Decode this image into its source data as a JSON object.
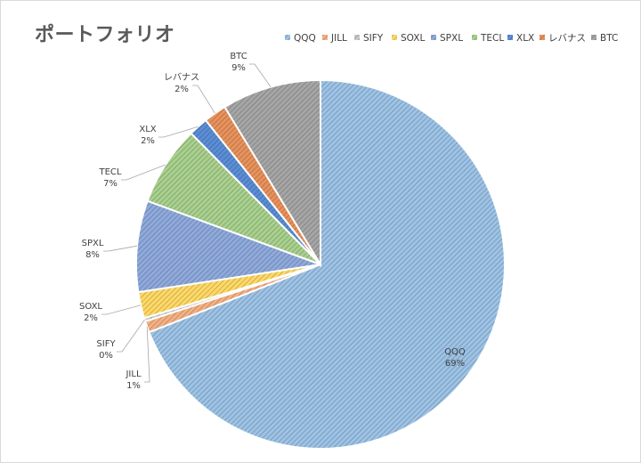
{
  "chart_data": {
    "type": "pie",
    "title": "ポートフォリオ",
    "legend_position": "top-right",
    "slices": [
      {
        "name": "QQQ",
        "value": 69,
        "label": "69%",
        "color": "#9dc3e6"
      },
      {
        "name": "JILL",
        "value": 1,
        "label": "1%",
        "color": "#f4b183"
      },
      {
        "name": "SIFY",
        "value": 0.3,
        "label": "0%",
        "color": "#c9c9c9"
      },
      {
        "name": "SOXL",
        "value": 2.3,
        "label": "2%",
        "color": "#ffd966"
      },
      {
        "name": "SPXL",
        "value": 8,
        "label": "8%",
        "color": "#8faadc"
      },
      {
        "name": "TECL",
        "value": 7,
        "label": "7%",
        "color": "#a9d18e"
      },
      {
        "name": "XLX",
        "value": 1.7,
        "label": "2%",
        "color": "#5b8ed6"
      },
      {
        "name": "レバナス",
        "value": 2,
        "label": "2%",
        "color": "#e8925c"
      },
      {
        "name": "BTC",
        "value": 8.7,
        "label": "9%",
        "color": "#a6a6a6"
      }
    ]
  }
}
